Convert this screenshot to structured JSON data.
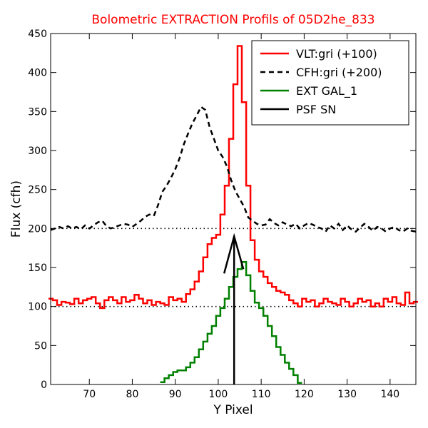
{
  "chart_data": {
    "type": "line",
    "title": "Bolometric EXTRACTION Profils of 05D2he_833",
    "title_color": "#ff0000",
    "xlabel": "Y Pixel",
    "ylabel": "Flux (cfh)",
    "xlim": [
      61,
      146
    ],
    "ylim": [
      0,
      450
    ],
    "xticks": [
      70,
      80,
      90,
      100,
      110,
      120,
      130,
      140
    ],
    "yticks": [
      0,
      50,
      100,
      150,
      200,
      250,
      300,
      350,
      400,
      450
    ],
    "legend_position": "top-right",
    "reference_lines": [
      100,
      200
    ],
    "series": [
      {
        "name": "VLT:gri (+100)",
        "color": "#ff0000",
        "style": "steps",
        "x": [
          61,
          62,
          63,
          64,
          65,
          66,
          67,
          68,
          69,
          70,
          71,
          72,
          73,
          74,
          75,
          76,
          77,
          78,
          79,
          80,
          81,
          82,
          83,
          84,
          85,
          86,
          87,
          88,
          89,
          90,
          91,
          92,
          93,
          94,
          95,
          96,
          97,
          98,
          99,
          100,
          101,
          102,
          103,
          104,
          105,
          106,
          107,
          108,
          109,
          110,
          111,
          112,
          113,
          114,
          115,
          116,
          117,
          118,
          119,
          120,
          121,
          122,
          123,
          124,
          125,
          126,
          127,
          128,
          129,
          130,
          131,
          132,
          133,
          134,
          135,
          136,
          137,
          138,
          139,
          140,
          141,
          142,
          143,
          144,
          145,
          146
        ],
        "y": [
          110,
          108,
          102,
          106,
          105,
          103,
          110,
          104,
          108,
          110,
          112,
          104,
          98,
          108,
          112,
          108,
          104,
          112,
          106,
          108,
          115,
          110,
          104,
          108,
          102,
          106,
          104,
          102,
          112,
          108,
          110,
          106,
          116,
          122,
          132,
          145,
          163,
          180,
          188,
          192,
          218,
          255,
          315,
          385,
          434,
          362,
          255,
          185,
          160,
          145,
          138,
          130,
          125,
          120,
          118,
          115,
          108,
          104,
          100,
          110,
          106,
          108,
          100,
          104,
          110,
          106,
          104,
          102,
          110,
          106,
          100,
          104,
          110,
          106,
          108,
          100,
          104,
          100,
          110,
          106,
          112,
          104,
          102,
          118,
          104,
          106
        ]
      },
      {
        "name": "CFH:gri (+200)",
        "color": "#000000",
        "style": "dashed",
        "x": [
          61,
          62,
          63,
          64,
          65,
          66,
          67,
          68,
          69,
          70,
          71,
          72,
          73,
          74,
          75,
          76,
          77,
          78,
          79,
          80,
          81,
          82,
          83,
          84,
          85,
          86,
          87,
          88,
          89,
          90,
          91,
          92,
          93,
          94,
          95,
          96,
          97,
          98,
          99,
          100,
          101,
          102,
          103,
          104,
          105,
          106,
          107,
          108,
          109,
          110,
          111,
          112,
          113,
          114,
          115,
          116,
          117,
          118,
          119,
          120,
          121,
          122,
          123,
          124,
          125,
          126,
          127,
          128,
          129,
          130,
          131,
          132,
          133,
          134,
          135,
          136,
          137,
          138,
          139,
          140,
          141,
          142,
          143,
          144,
          145,
          146
        ],
        "y": [
          198,
          200,
          202,
          200,
          203,
          200,
          202,
          199,
          204,
          200,
          204,
          208,
          210,
          203,
          200,
          202,
          204,
          206,
          205,
          202,
          206,
          210,
          215,
          218,
          216,
          230,
          247,
          255,
          265,
          276,
          290,
          308,
          322,
          335,
          345,
          356,
          352,
          330,
          315,
          300,
          292,
          280,
          262,
          248,
          238,
          228,
          214,
          210,
          206,
          204,
          205,
          212,
          207,
          204,
          208,
          205,
          203,
          206,
          200,
          204,
          207,
          205,
          202,
          200,
          196,
          204,
          200,
          206,
          198,
          204,
          199,
          196,
          201,
          206,
          202,
          197,
          202,
          200,
          196,
          200,
          202,
          198,
          196,
          200,
          197,
          196
        ]
      },
      {
        "name": "EXT GAL_1",
        "color": "#008000",
        "style": "steps",
        "x": [
          87,
          88,
          89,
          90,
          91,
          92,
          93,
          94,
          95,
          96,
          97,
          98,
          99,
          100,
          101,
          102,
          103,
          104,
          105,
          106,
          107,
          108,
          109,
          110,
          111,
          112,
          113,
          114,
          115,
          116,
          117,
          118,
          119
        ],
        "y": [
          3,
          8,
          12,
          16,
          18,
          18,
          22,
          28,
          35,
          45,
          55,
          65,
          75,
          88,
          98,
          110,
          125,
          138,
          148,
          157,
          140,
          120,
          105,
          98,
          88,
          75,
          62,
          48,
          38,
          28,
          20,
          12,
          2
        ]
      },
      {
        "name": "PSF SN",
        "color": "#000000",
        "style": "arrow",
        "x": [
          103.7
        ],
        "y": [
          190
        ]
      }
    ]
  }
}
